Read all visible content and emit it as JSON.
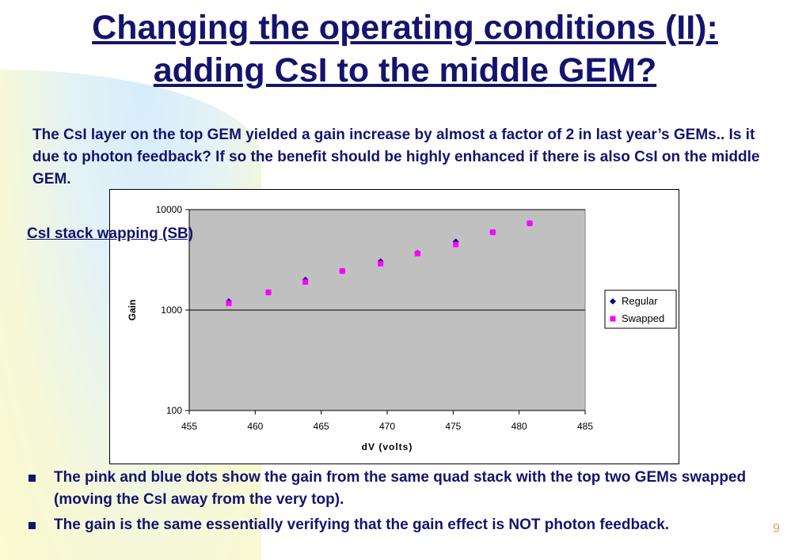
{
  "slide": {
    "title_line1": "Changing the operating conditions (II):",
    "title_line2": "adding CsI to the middle GEM?",
    "intro": "The CsI layer on the top GEM yielded a gain increase by almost a factor of  2 in last year’s GEMs.. Is it due to photon feedback? If so the benefit should be highly enhanced if there is also CsI on the middle GEM.",
    "subheading": "CsI stack wapping (SB)",
    "bullets": [
      "The pink and blue dots show the gain from the same quad stack with the top two GEMs swapped (moving the CsI away from the very top).",
      "The gain is the same essentially verifying that the gain effect is NOT photon feedback."
    ],
    "page_number": "9"
  },
  "chart_data": {
    "type": "scatter",
    "xlabel": "dV (volts)",
    "ylabel": "Gain",
    "xlim": [
      455,
      485
    ],
    "ylim": [
      100,
      10000
    ],
    "yscale": "log",
    "x_ticks": [
      "455",
      "460",
      "465",
      "470",
      "475",
      "480",
      "485"
    ],
    "y_ticks": [
      "100",
      "1000",
      "10000"
    ],
    "grid": "horizontal major",
    "plot_background": "#c0c0c0",
    "legend_position": "right",
    "series": [
      {
        "name": "Regular",
        "marker": "diamond",
        "color": "#000080",
        "x": [
          458,
          461,
          463.8,
          466.6,
          469.5,
          472.3,
          475.2,
          478,
          480.8
        ],
        "y": [
          1220,
          1500,
          2000,
          2450,
          3050,
          3700,
          4800,
          5950,
          7300
        ]
      },
      {
        "name": "Swapped",
        "marker": "square",
        "color": "#ff00ff",
        "x": [
          458,
          461,
          463.8,
          466.6,
          469.5,
          472.3,
          475.2,
          478,
          480.8
        ],
        "y": [
          1170,
          1500,
          1900,
          2450,
          2900,
          3650,
          4500,
          5950,
          7300
        ]
      }
    ]
  }
}
